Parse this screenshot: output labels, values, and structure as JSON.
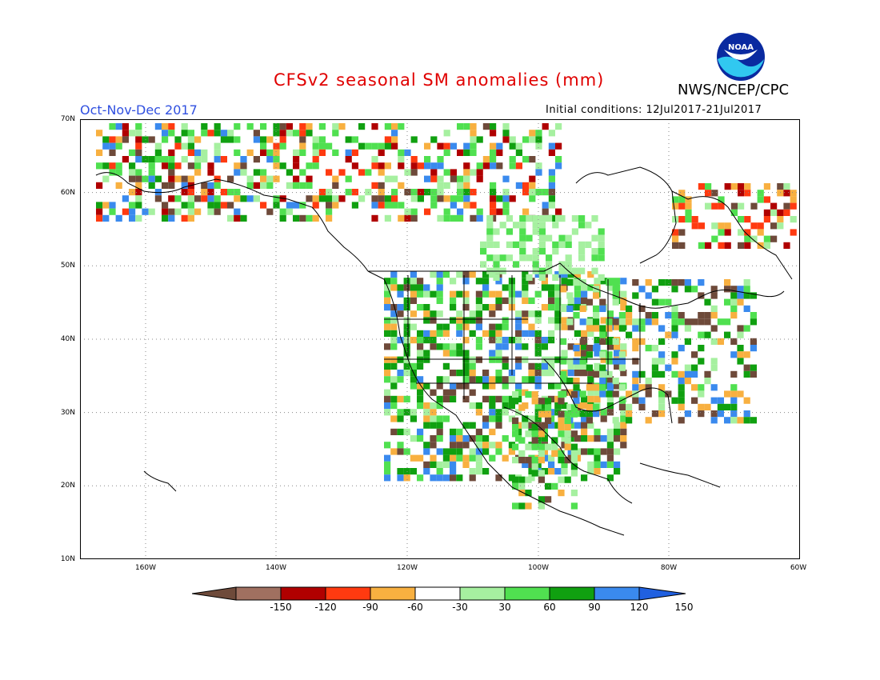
{
  "title": "CFSv2 seasonal SM anomalies (mm)",
  "period": "Oct-Nov-Dec 2017",
  "agency": "NWS/NCEP/CPC",
  "initial_conditions": "Initial conditions: 12Jul2017-21Jul2017",
  "logo_text": "NOAA",
  "lat_labels": [
    "70N",
    "60N",
    "50N",
    "40N",
    "30N",
    "20N",
    "10N"
  ],
  "lon_labels": [
    "160W",
    "140W",
    "120W",
    "100W",
    "80W",
    "60W"
  ],
  "colorbar": {
    "labels": [
      "-150",
      "-120",
      "-90",
      "-60",
      "-30",
      "30",
      "60",
      "90",
      "120",
      "150"
    ],
    "colors": [
      "#6e4a3a",
      "#a07060",
      "#b00000",
      "#ff3a10",
      "#f8b040",
      "#ffffff",
      "#a6f0a0",
      "#50e050",
      "#10a010",
      "#3a8aee",
      "#2060e0"
    ]
  }
}
